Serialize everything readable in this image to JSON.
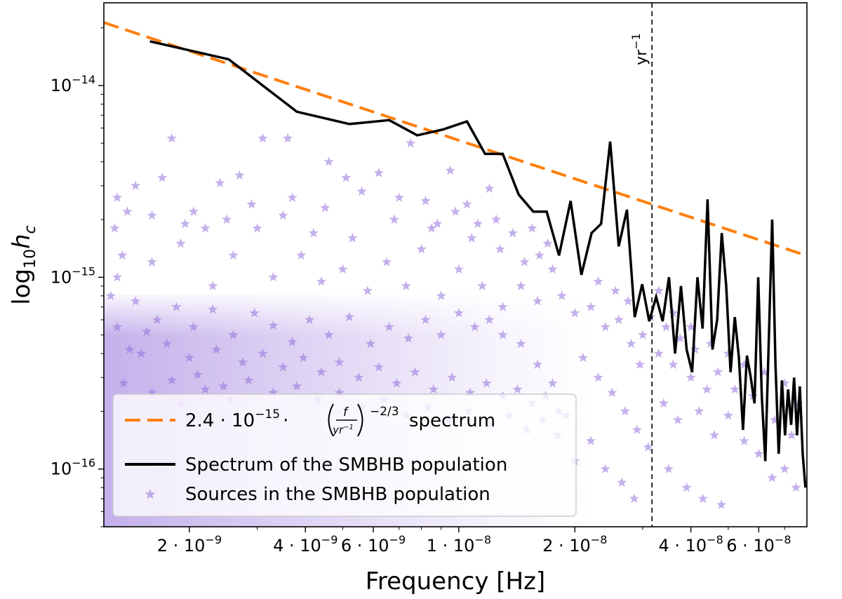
{
  "chart_data": {
    "type": "scatter",
    "xlabel": "Frequency [Hz]",
    "ylabel_base": "log",
    "ylabel_sub": "10",
    "ylabel_var": "h",
    "ylabel_var_sub": "c",
    "x_scale": "log",
    "y_scale": "log",
    "xlim": [
      1.2e-09,
      8e-08
    ],
    "ylim": [
      5e-17,
      2.7e-14
    ],
    "grid": false,
    "legend_position": "lower-left",
    "x_ticks": [
      {
        "value": 2e-09,
        "mant": "2",
        "exp": "−9"
      },
      {
        "value": 4e-09,
        "mant": "4",
        "exp": "−9"
      },
      {
        "value": 6e-09,
        "mant": "6",
        "exp": "−9"
      },
      {
        "value": 1e-08,
        "mant": "1",
        "exp": "−8"
      },
      {
        "value": 2e-08,
        "mant": "2",
        "exp": "−8"
      },
      {
        "value": 4e-08,
        "mant": "4",
        "exp": "−8"
      },
      {
        "value": 6e-08,
        "mant": "6",
        "exp": "−8"
      }
    ],
    "y_ticks": [
      {
        "value": 1e-14,
        "exp": "−14"
      },
      {
        "value": 1e-15,
        "exp": "−15"
      },
      {
        "value": 1e-16,
        "exp": "−16"
      }
    ],
    "reference_line": {
      "x": 3.17e-08,
      "label_base": "yr",
      "label_exp": "−1"
    },
    "series": [
      {
        "name": "2.4·10⁻¹⁵·(f/yr⁻¹)^(−2/3) spectrum",
        "kind": "dashed-line",
        "color": "#ff7f0e",
        "amplitude": 2.4e-15,
        "ref_freq": 3.17e-08,
        "slope": -0.6667
      },
      {
        "name": "Spectrum of the SMBHB population",
        "kind": "line",
        "color": "#000000",
        "x": [
          1.58e-09,
          2.53e-09,
          3.8e-09,
          5.2e-09,
          6.6e-09,
          7.8e-09,
          9.1e-09,
          1.05e-08,
          1.17e-08,
          1.3e-08,
          1.43e-08,
          1.56e-08,
          1.69e-08,
          1.82e-08,
          1.95e-08,
          2.08e-08,
          2.21e-08,
          2.34e-08,
          2.47e-08,
          2.6e-08,
          2.73e-08,
          2.86e-08,
          2.99e-08,
          3.12e-08,
          3.25e-08,
          3.38e-08,
          3.51e-08,
          3.64e-08,
          3.77e-08,
          3.9e-08,
          4.03e-08,
          4.16e-08,
          4.29e-08,
          4.42e-08,
          4.55e-08,
          4.68e-08,
          4.81e-08,
          4.94e-08,
          5.07e-08,
          5.2e-08,
          5.33e-08,
          5.46e-08,
          5.59e-08,
          5.72e-08,
          5.85e-08,
          5.98e-08,
          6.11e-08,
          6.24e-08,
          6.37e-08,
          6.5e-08,
          6.63e-08,
          6.76e-08,
          6.89e-08,
          7.02e-08,
          7.15e-08,
          7.28e-08,
          7.41e-08,
          7.54e-08,
          7.67e-08,
          7.8e-08,
          7.93e-08
        ],
        "y": [
          1.7e-14,
          1.37e-14,
          7.3e-15,
          6.3e-15,
          6.6e-15,
          5.5e-15,
          5.9e-15,
          6.5e-15,
          4.4e-15,
          4.4e-15,
          2.7e-15,
          2.2e-15,
          2.2e-15,
          1.3e-15,
          2.5e-15,
          1.03e-15,
          1.7e-15,
          1.9e-15,
          5.1e-15,
          1.45e-15,
          2.25e-15,
          6.2e-16,
          9.2e-16,
          5.9e-16,
          7.9e-16,
          5.9e-16,
          1e-15,
          4e-16,
          9e-16,
          4.2e-16,
          3.2e-16,
          1e-15,
          5.4e-16,
          2.55e-15,
          4.2e-16,
          6e-16,
          1.7e-15,
          9e-16,
          3.2e-16,
          6.2e-16,
          3.8e-16,
          1.6e-16,
          3.9e-16,
          3e-16,
          2.2e-16,
          1e-15,
          2.4e-16,
          1.1e-16,
          4.6e-16,
          2e-15,
          3.5e-16,
          1.2e-16,
          2.9e-16,
          1.5e-16,
          2.6e-16,
          1.7e-16,
          3e-16,
          1.5e-16,
          2.7e-16,
          1.2e-16,
          8e-17
        ]
      },
      {
        "name": "Sources in the SMBHB population",
        "kind": "stars",
        "color": "#9370db",
        "points": [
          [
            1.8e-09,
            5.3e-15
          ],
          [
            2.4e-09,
            3.1e-15
          ],
          [
            2.7e-09,
            3.4e-15
          ],
          [
            3.1e-09,
            5.3e-15
          ],
          [
            3.6e-09,
            5.3e-15
          ],
          [
            1.3e-09,
            2.6e-15
          ],
          [
            1.45e-09,
            3e-15
          ],
          [
            1.7e-09,
            3.3e-15
          ],
          [
            2.05e-09,
            2.2e-15
          ],
          [
            2.2e-09,
            1.8e-15
          ],
          [
            3e-09,
            1.8e-15
          ],
          [
            3.5e-09,
            2.1e-15
          ],
          [
            4.2e-09,
            1.7e-15
          ],
          [
            4.6e-09,
            4e-15
          ],
          [
            5.1e-09,
            3.3e-15
          ],
          [
            5.6e-09,
            2.8e-15
          ],
          [
            6.2e-09,
            3.5e-15
          ],
          [
            7e-09,
            2.6e-15
          ],
          [
            7.5e-09,
            5e-15
          ],
          [
            8.2e-09,
            2.5e-15
          ],
          [
            8.8e-09,
            1.9e-15
          ],
          [
            9.5e-09,
            3.6e-15
          ],
          [
            1.05e-08,
            2.4e-15
          ],
          [
            1.12e-08,
            1.9e-15
          ],
          [
            1.2e-08,
            2.9e-15
          ],
          [
            1.28e-08,
            1.4e-15
          ],
          [
            1.38e-08,
            1.7e-15
          ],
          [
            1.48e-08,
            1.2e-15
          ],
          [
            1.62e-08,
            1.3e-15
          ],
          [
            1.75e-08,
            1.1e-15
          ],
          [
            1.3e-09,
            1e-15
          ],
          [
            1.6e-09,
            1.2e-15
          ],
          [
            1.9e-09,
            1.5e-15
          ],
          [
            2.3e-09,
            9e-16
          ],
          [
            2.6e-09,
            1.3e-15
          ],
          [
            3.3e-09,
            1e-15
          ],
          [
            3.9e-09,
            1.3e-15
          ],
          [
            4.4e-09,
            9.5e-16
          ],
          [
            5e-09,
            1.1e-15
          ],
          [
            5.8e-09,
            8.5e-16
          ],
          [
            6.5e-09,
            1.2e-15
          ],
          [
            7.3e-09,
            9e-16
          ],
          [
            8e-09,
            1.4e-15
          ],
          [
            9e-09,
            8e-16
          ],
          [
            1e-08,
            1.1e-15
          ],
          [
            1.15e-08,
            9e-16
          ],
          [
            1.3e-08,
            7e-16
          ],
          [
            1.45e-08,
            9e-16
          ],
          [
            1.6e-08,
            7.5e-16
          ],
          [
            1.85e-08,
            8e-16
          ],
          [
            2e-08,
            6.5e-16
          ],
          [
            2.2e-08,
            7e-16
          ],
          [
            2.4e-08,
            5.5e-16
          ],
          [
            2.6e-08,
            6e-16
          ],
          [
            2.8e-08,
            4.5e-16
          ],
          [
            3e-08,
            5e-16
          ],
          [
            3.3e-08,
            4e-16
          ],
          [
            3.6e-08,
            3.5e-16
          ],
          [
            4e-08,
            3e-16
          ],
          [
            4.4e-08,
            2.6e-16
          ],
          [
            2.1e-08,
            3.8e-16
          ],
          [
            2.3e-08,
            3e-16
          ],
          [
            2.5e-08,
            2.5e-16
          ],
          [
            2.7e-08,
            2e-16
          ],
          [
            2.9e-08,
            1.6e-16
          ],
          [
            3.1e-08,
            1.3e-16
          ],
          [
            3.4e-08,
            2.2e-16
          ],
          [
            3.7e-08,
            1.8e-16
          ],
          [
            4.2e-08,
            2e-16
          ],
          [
            4.6e-08,
            1.5e-16
          ],
          [
            5e-08,
            1.9e-16
          ],
          [
            5.5e-08,
            1.4e-16
          ],
          [
            6e-08,
            1.2e-16
          ],
          [
            6.5e-08,
            9e-17
          ],
          [
            7e-08,
            1e-16
          ],
          [
            7.5e-08,
            8e-17
          ],
          [
            3.5e-08,
            1e-16
          ],
          [
            3.9e-08,
            8e-17
          ],
          [
            4.3e-08,
            7e-17
          ],
          [
            4.8e-08,
            6.5e-17
          ],
          [
            2.2e-08,
            1.4e-16
          ],
          [
            2e-08,
            1.1e-16
          ],
          [
            2.4e-08,
            1e-16
          ],
          [
            2.65e-08,
            8.5e-17
          ],
          [
            2.85e-08,
            7e-17
          ],
          [
            1.9e-08,
            1.9e-16
          ],
          [
            1.75e-08,
            2.8e-16
          ],
          [
            1.6e-08,
            3.5e-16
          ],
          [
            1.45e-08,
            4.5e-16
          ],
          [
            1.3e-08,
            5e-16
          ],
          [
            1.2e-08,
            6e-16
          ],
          [
            1.1e-08,
            5.5e-16
          ],
          [
            1e-08,
            6.5e-16
          ],
          [
            9e-09,
            5e-16
          ],
          [
            8.2e-09,
            6e-16
          ],
          [
            7.4e-09,
            4.8e-16
          ],
          [
            6.6e-09,
            5.5e-16
          ],
          [
            5.9e-09,
            4.5e-16
          ],
          [
            5.2e-09,
            6.2e-16
          ],
          [
            4.6e-09,
            5e-16
          ],
          [
            4.1e-09,
            6e-16
          ],
          [
            3.7e-09,
            4.6e-16
          ],
          [
            3.3e-09,
            5.6e-16
          ],
          [
            2.95e-09,
            6.5e-16
          ],
          [
            2.6e-09,
            5e-16
          ],
          [
            2.3e-09,
            6.8e-16
          ],
          [
            2.05e-09,
            5.5e-16
          ],
          [
            1.85e-09,
            7e-16
          ],
          [
            1.65e-09,
            6e-16
          ],
          [
            1.45e-09,
            7.5e-16
          ],
          [
            1.3e-09,
            5.5e-16
          ],
          [
            1.25e-09,
            8e-16
          ],
          [
            1.5e-09,
            4e-16
          ],
          [
            1.75e-09,
            4.5e-16
          ],
          [
            2e-09,
            3.8e-16
          ],
          [
            2.35e-09,
            4.2e-16
          ],
          [
            2.75e-09,
            3.6e-16
          ],
          [
            3.1e-09,
            4e-16
          ],
          [
            3.5e-09,
            3.4e-16
          ],
          [
            3.95e-09,
            3.8e-16
          ],
          [
            4.4e-09,
            3.2e-16
          ],
          [
            4.9e-09,
            3.6e-16
          ],
          [
            5.5e-09,
            3e-16
          ],
          [
            6.2e-09,
            3.4e-16
          ],
          [
            6.9e-09,
            2.8e-16
          ],
          [
            7.7e-09,
            3.2e-16
          ],
          [
            8.6e-09,
            2.6e-16
          ],
          [
            9.6e-09,
            3e-16
          ],
          [
            1.07e-08,
            2.5e-16
          ],
          [
            1.18e-08,
            2.8e-16
          ],
          [
            1.3e-08,
            2.4e-16
          ],
          [
            1.42e-08,
            2.6e-16
          ],
          [
            1.55e-08,
            2.2e-16
          ],
          [
            1.68e-08,
            2.4e-16
          ],
          [
            1.82e-08,
            2e-16
          ],
          [
            1.35e-09,
            2.8e-16
          ],
          [
            1.6e-09,
            2.5e-16
          ],
          [
            1.9e-09,
            2.2e-16
          ],
          [
            2.2e-09,
            2.6e-16
          ],
          [
            2.55e-09,
            2.3e-16
          ],
          [
            1.28e-09,
            1.8e-15
          ],
          [
            1.34e-09,
            1.3e-15
          ],
          [
            1.4e-09,
            4.2e-16
          ],
          [
            1.55e-09,
            5.2e-16
          ],
          [
            1.8e-09,
            2.9e-16
          ],
          [
            2.1e-09,
            3.1e-16
          ],
          [
            2.45e-09,
            2.7e-16
          ],
          [
            2.85e-09,
            2.9e-16
          ],
          [
            3.3e-09,
            2.5e-16
          ],
          [
            3.8e-09,
            2.7e-16
          ],
          [
            4.3e-09,
            2.3e-16
          ],
          [
            4.9e-09,
            2.5e-16
          ],
          [
            5.6e-09,
            2.1e-16
          ],
          [
            6.4e-09,
            2.3e-16
          ],
          [
            7.3e-09,
            1.9e-16
          ],
          [
            8.3e-09,
            2.1e-16
          ],
          [
            9.4e-09,
            1.8e-16
          ],
          [
            1.06e-08,
            2e-16
          ],
          [
            1.2e-08,
            1.7e-16
          ],
          [
            1.35e-08,
            1.9e-16
          ],
          [
            1.5e-08,
            1.6e-16
          ],
          [
            1.65e-08,
            1.8e-16
          ],
          [
            1.8e-08,
            1.5e-16
          ],
          [
            8.5e-09,
            1.8e-15
          ],
          [
            9.8e-09,
            2.2e-15
          ],
          [
            1.08e-08,
            1.6e-15
          ],
          [
            1.25e-08,
            2e-15
          ],
          [
            1.55e-08,
            1.8e-15
          ],
          [
            1.7e-08,
            1.5e-15
          ],
          [
            6.8e-09,
            2e-15
          ],
          [
            5.3e-09,
            1.6e-15
          ],
          [
            4.5e-09,
            2.3e-15
          ],
          [
            3.7e-09,
            2.6e-15
          ],
          [
            2.9e-09,
            2.4e-15
          ],
          [
            2.5e-09,
            2e-15
          ],
          [
            1.95e-09,
            1.9e-15
          ],
          [
            1.6e-09,
            2.1e-15
          ],
          [
            1.38e-09,
            2.2e-15
          ],
          [
            2.3e-08,
            9.5e-16
          ],
          [
            2.55e-08,
            8.5e-16
          ],
          [
            2.75e-08,
            7.5e-16
          ],
          [
            3.3e-08,
            8.5e-16
          ],
          [
            3.6e-08,
            6.5e-16
          ],
          [
            4e-08,
            5.5e-16
          ],
          [
            4.5e-08,
            4.5e-16
          ],
          [
            5e-08,
            4e-16
          ],
          [
            5.5e-08,
            3.5e-16
          ],
          [
            6.2e-08,
            3.2e-16
          ],
          [
            7e-08,
            2.8e-16
          ],
          [
            7.6e-08,
            2.2e-16
          ],
          [
            5.2e-08,
            2.6e-16
          ],
          [
            5.8e-08,
            2.4e-16
          ],
          [
            6.6e-08,
            1.8e-16
          ],
          [
            7.3e-08,
            1.5e-16
          ],
          [
            4.7e-08,
            3.2e-16
          ],
          [
            4.1e-08,
            4.2e-16
          ],
          [
            3.75e-08,
            4.8e-16
          ],
          [
            3.45e-08,
            5.5e-16
          ],
          [
            3.15e-08,
            6.2e-16
          ],
          [
            2.95e-08,
            3.5e-16
          ]
        ]
      }
    ]
  },
  "legend": {
    "item1": {
      "prefix": "2.4 · 10",
      "exp": "−15",
      "dot": "·",
      "frac_num": "f",
      "frac_den": "yr",
      "frac_den_exp": "−1",
      "power": "−2/3",
      "suffix": "spectrum"
    },
    "item2": "Spectrum of the SMBHB population",
    "item3": "Sources in the SMBHB population"
  }
}
